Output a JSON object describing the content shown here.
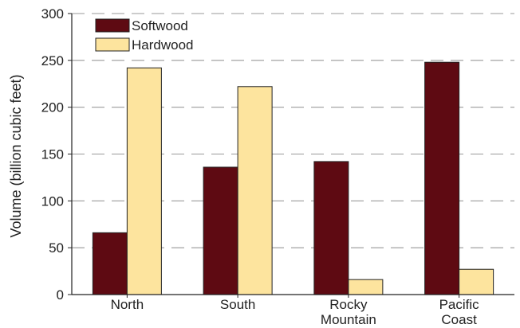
{
  "chart_data": {
    "type": "bar",
    "title": "",
    "xlabel": "",
    "ylabel": "Volume (billion cubic feet)",
    "ylim": [
      0,
      300
    ],
    "yticks": [
      0,
      50,
      100,
      150,
      200,
      250,
      300
    ],
    "grid": true,
    "legend_position": "top-left",
    "categories": [
      [
        "North"
      ],
      [
        "South"
      ],
      [
        "Rocky",
        "Mountain"
      ],
      [
        "Pacific",
        "Coast"
      ]
    ],
    "series": [
      {
        "name": "Softwood",
        "color": "#5e0a12",
        "values": [
          66,
          136,
          142,
          248
        ]
      },
      {
        "name": "Hardwood",
        "color": "#fde49e",
        "values": [
          242,
          222,
          16,
          27
        ]
      }
    ]
  }
}
